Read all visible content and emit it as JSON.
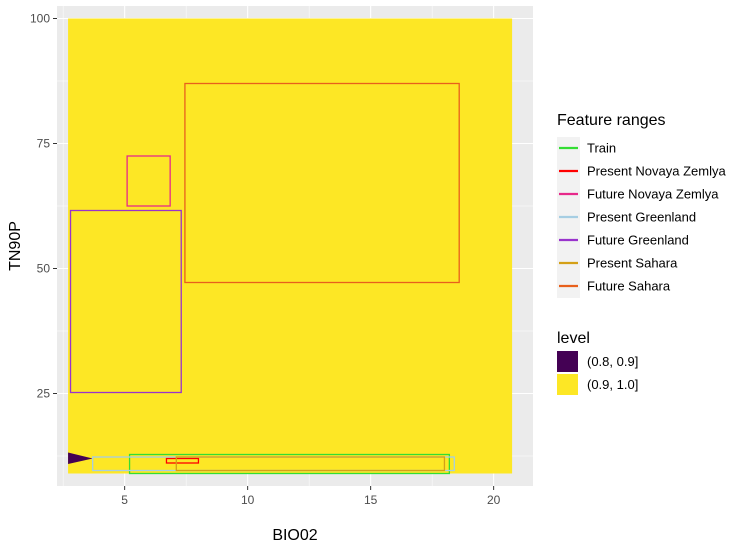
{
  "chart_data": {
    "type": "heatmap",
    "xlabel": "BIO02",
    "ylabel": "TN90P",
    "xlim": [
      2.25,
      21.6
    ],
    "ylim": [
      6.5,
      102.5
    ],
    "x_ticks": [
      5,
      10,
      15,
      20
    ],
    "y_ticks": [
      25,
      50,
      75,
      100
    ],
    "grid": true,
    "fill_legend": {
      "title": "level",
      "placement": "right",
      "levels": [
        {
          "label": "(0.8, 0.9]",
          "color": "#440154"
        },
        {
          "label": "(0.9, 1.0]",
          "color": "#FDE725"
        }
      ]
    },
    "fill_regions": [
      {
        "level": "(0.9, 1.0]",
        "x": [
          2.7,
          20.75
        ],
        "y": [
          9,
          100
        ]
      },
      {
        "level": "(0.8, 0.9]",
        "polygon": [
          [
            2.7,
            13.2
          ],
          [
            3.7,
            12.0
          ],
          [
            2.7,
            10.9
          ]
        ]
      }
    ],
    "range_legend": {
      "title": "Feature ranges",
      "placement": "right",
      "series": [
        {
          "name": "Train",
          "color": "#33DD33"
        },
        {
          "name": "Present Novaya Zemlya",
          "color": "#FF0000"
        },
        {
          "name": "Future Novaya Zemlya",
          "color": "#E7298A"
        },
        {
          "name": "Present Greenland",
          "color": "#A6CEE3"
        },
        {
          "name": "Future Greenland",
          "color": "#9933CC"
        },
        {
          "name": "Present Sahara",
          "color": "#D4A017"
        },
        {
          "name": "Future Sahara",
          "color": "#E8601C"
        }
      ]
    },
    "ranges": [
      {
        "series": "Train",
        "xmin": 5.2,
        "xmax": 18.2,
        "ymin": 9,
        "ymax": 12.8
      },
      {
        "series": "Present Novaya Zemlya",
        "xmin": 6.7,
        "xmax": 8.0,
        "ymin": 11.1,
        "ymax": 12.0
      },
      {
        "series": "Future Novaya Zemlya",
        "xmin": 5.1,
        "xmax": 6.85,
        "ymin": 62.5,
        "ymax": 72.5
      },
      {
        "series": "Present Greenland",
        "xmin": 3.7,
        "xmax": 18.4,
        "ymin": 9.6,
        "ymax": 12.3
      },
      {
        "series": "Future Greenland",
        "xmin": 2.8,
        "xmax": 7.3,
        "ymin": 25.2,
        "ymax": 61.6
      },
      {
        "series": "Present Sahara",
        "xmin": 7.1,
        "xmax": 18.0,
        "ymin": 9.6,
        "ymax": 12.3
      },
      {
        "series": "Future Sahara",
        "xmin": 7.45,
        "xmax": 18.6,
        "ymin": 47.2,
        "ymax": 87.0
      }
    ]
  }
}
